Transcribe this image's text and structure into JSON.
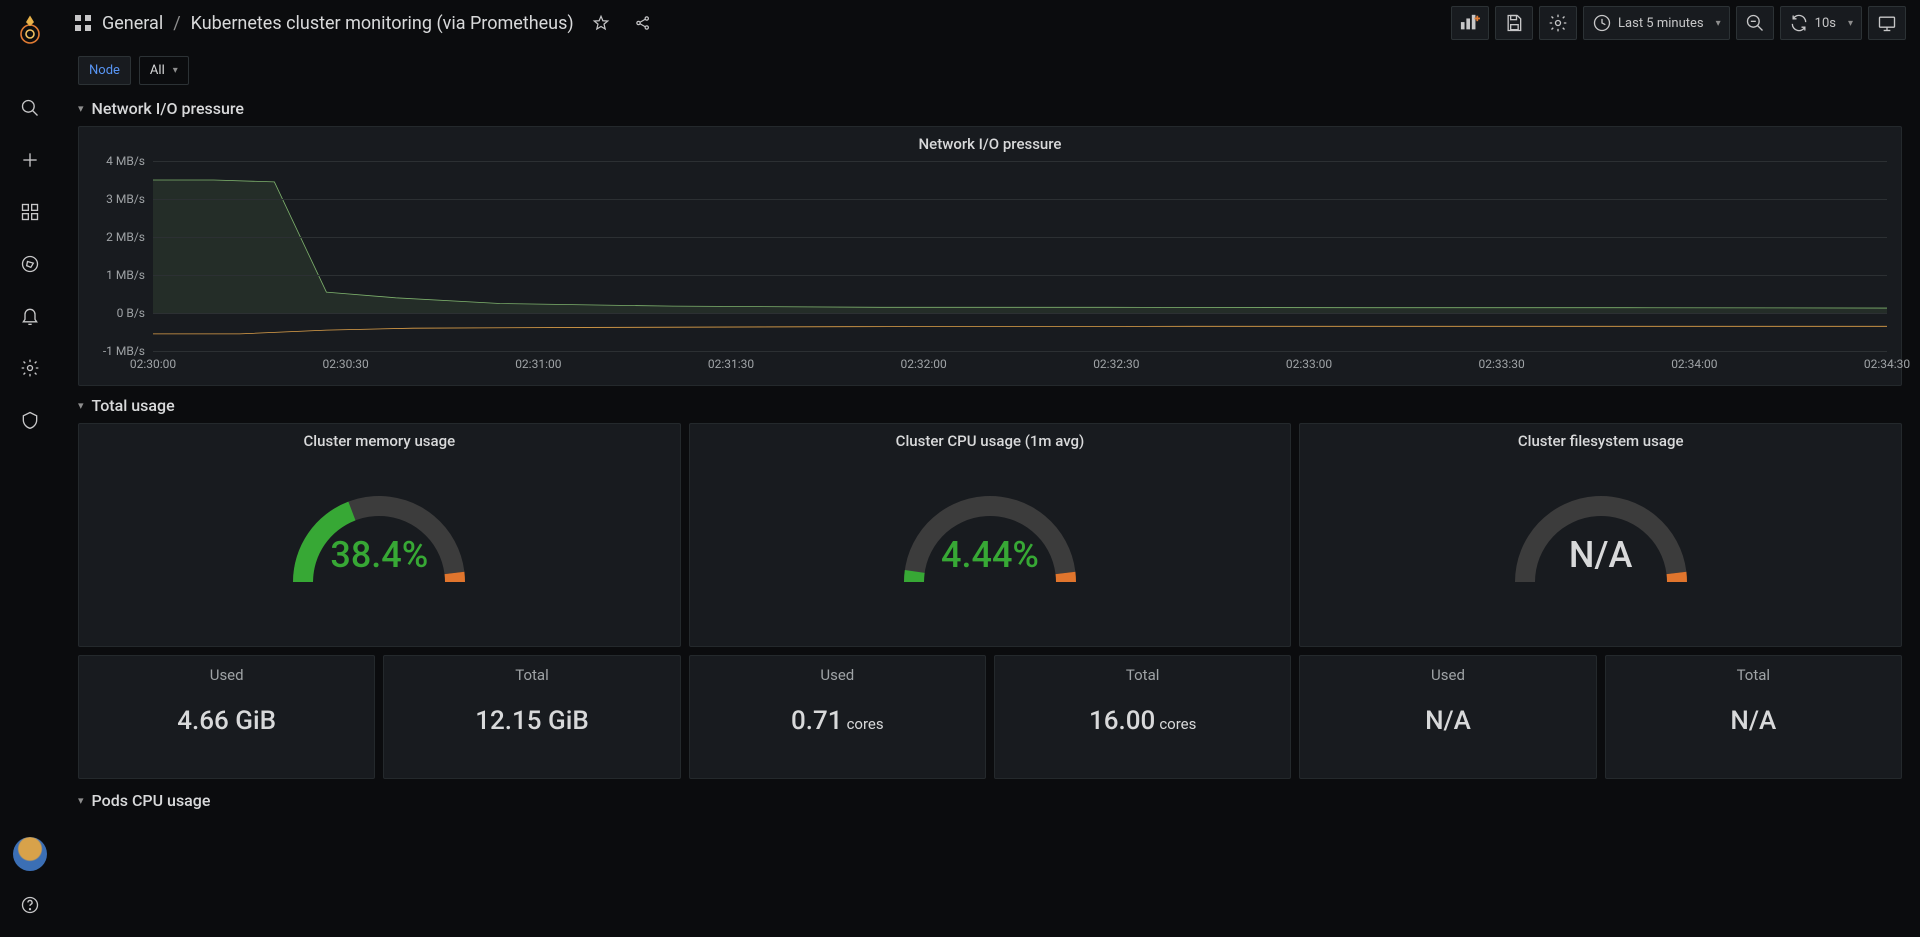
{
  "colors": {
    "bg": "#0b0c0e",
    "panel": "#181b1f",
    "border": "#2c3235",
    "text": "#d8d9da",
    "muted": "#9fa3a6",
    "link": "#5794f2",
    "series_in": "#7eb26d",
    "series_out": "#e0a24a",
    "gauge_fill": "#37a835",
    "gauge_track": "#3c3c3c",
    "gauge_end": "#e0752d",
    "grid": "#2c3033"
  },
  "header": {
    "folder": "General",
    "title": "Kubernetes cluster monitoring (via Prometheus)",
    "time_label": "Last 5 minutes",
    "refresh_label": "10s"
  },
  "variables": {
    "node_label": "Node",
    "node_value": "All"
  },
  "rows": {
    "network": "Network I/O pressure",
    "total": "Total usage",
    "pods": "Pods CPU usage"
  },
  "network_chart": {
    "title": "Network I/O pressure",
    "ymin": -1,
    "ymax": 4,
    "yticks": [
      {
        "v": 4,
        "label": "4 MB/s"
      },
      {
        "v": 3,
        "label": "3 MB/s"
      },
      {
        "v": 2,
        "label": "2 MB/s"
      },
      {
        "v": 1,
        "label": "1 MB/s"
      },
      {
        "v": 0,
        "label": "0 B/s"
      },
      {
        "v": -1,
        "label": "-1 MB/s"
      }
    ],
    "xticks": [
      "02:30:00",
      "02:30:30",
      "02:31:00",
      "02:31:30",
      "02:32:00",
      "02:32:30",
      "02:33:00",
      "02:33:30",
      "02:34:00",
      "02:34:30"
    ],
    "series_in": {
      "color": "#7eb26d",
      "fill_opacity": 0.12,
      "points": [
        [
          0,
          3.5
        ],
        [
          0.035,
          3.5
        ],
        [
          0.07,
          3.45
        ],
        [
          0.1,
          0.55
        ],
        [
          0.14,
          0.4
        ],
        [
          0.2,
          0.25
        ],
        [
          0.3,
          0.18
        ],
        [
          0.42,
          0.15
        ],
        [
          0.55,
          0.15
        ],
        [
          0.7,
          0.14
        ],
        [
          0.85,
          0.14
        ],
        [
          1.0,
          0.13
        ]
      ]
    },
    "series_out": {
      "color": "#e0a24a",
      "fill_opacity": 0.0,
      "points": [
        [
          0,
          -0.55
        ],
        [
          0.05,
          -0.55
        ],
        [
          0.1,
          -0.45
        ],
        [
          0.15,
          -0.4
        ],
        [
          0.25,
          -0.38
        ],
        [
          0.4,
          -0.36
        ],
        [
          0.6,
          -0.35
        ],
        [
          0.8,
          -0.35
        ],
        [
          1.0,
          -0.35
        ]
      ]
    }
  },
  "gauges": [
    {
      "title": "Cluster memory usage",
      "value": 38.4,
      "display": "38.4%",
      "color": "#37a835"
    },
    {
      "title": "Cluster CPU usage (1m avg)",
      "value": 4.44,
      "display": "4.44%",
      "color": "#37a835"
    },
    {
      "title": "Cluster filesystem usage",
      "value": null,
      "display": "N/A",
      "color": "#d8d9da"
    }
  ],
  "stats": [
    {
      "label": "Used",
      "value": "4.66 GiB",
      "unit": ""
    },
    {
      "label": "Total",
      "value": "12.15 GiB",
      "unit": ""
    },
    {
      "label": "Used",
      "value": "0.71",
      "unit": "cores"
    },
    {
      "label": "Total",
      "value": "16.00",
      "unit": "cores"
    },
    {
      "label": "Used",
      "value": "N/A",
      "unit": ""
    },
    {
      "label": "Total",
      "value": "N/A",
      "unit": ""
    }
  ]
}
